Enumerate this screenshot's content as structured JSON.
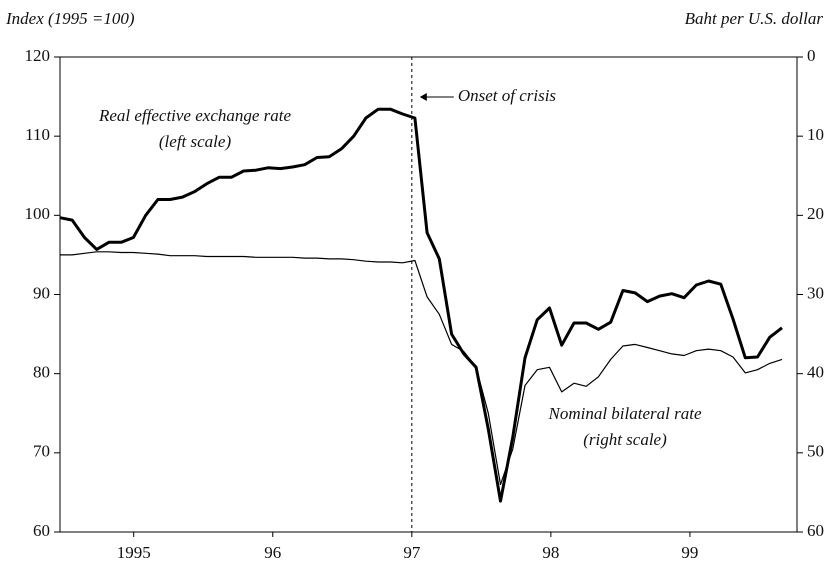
{
  "chart_data": {
    "type": "line",
    "ylabel": "Index (1995 =100)",
    "y2label": "Baht per U.S. dollar",
    "x": [
      1994.97,
      1995.058,
      1995.146,
      1995.234,
      1995.322,
      1995.41,
      1995.498,
      1995.586,
      1995.674,
      1995.762,
      1995.85,
      1995.938,
      1996.026,
      1996.114,
      1996.202,
      1996.29,
      1996.378,
      1996.466,
      1996.554,
      1996.642,
      1996.73,
      1996.818,
      1996.906,
      1996.994,
      1997.082,
      1997.17,
      1997.258,
      1997.346,
      1997.434,
      1997.522,
      1997.61,
      1997.698,
      1997.786,
      1997.874,
      1997.962,
      1998.05,
      1998.138,
      1998.226,
      1998.314,
      1998.402,
      1998.49,
      1998.578,
      1998.666,
      1998.754,
      1998.842,
      1998.93,
      1999.018,
      1999.106,
      1999.194,
      1999.282,
      1999.37,
      1999.458,
      1999.546,
      1999.634,
      1999.722,
      1999.81,
      1999.898,
      1999.986,
      2000.074,
      2000.162
    ],
    "series": [
      {
        "name": "Real effective exchange rate",
        "legend_note": "(left scale)",
        "color": "#000000",
        "width": 3,
        "axis": "y",
        "values": [
          99.7,
          99.4,
          97.2,
          95.7,
          96.6,
          96.6,
          97.2,
          100,
          102,
          102,
          102.3,
          103,
          104,
          104.8,
          104.8,
          105.6,
          105.7,
          106,
          105.9,
          106.1,
          106.4,
          107.3,
          107.4,
          108.4,
          110,
          112.3,
          113.4,
          113.4,
          112.8,
          112.3,
          97.8,
          94.5,
          85,
          82.5,
          80.8,
          73,
          63.9,
          72,
          82,
          86.8,
          88.3,
          83.6,
          86.4,
          86.4,
          85.6,
          86.5,
          90.5,
          90.2,
          89.1,
          89.8,
          90.1,
          89.6,
          91.2,
          91.7,
          91.3,
          86.9,
          82,
          82.1,
          84.6,
          85.8
        ]
      },
      {
        "name": "Nominal bilateral rate",
        "legend_note": "(right scale)",
        "color": "#000000",
        "width": 1.2,
        "axis": "y2",
        "values": [
          25.0,
          25.0,
          24.8,
          24.6,
          24.6,
          24.7,
          24.7,
          24.8,
          24.9,
          25.1,
          25.1,
          25.1,
          25.2,
          25.2,
          25.2,
          25.2,
          25.3,
          25.3,
          25.3,
          25.3,
          25.4,
          25.4,
          25.5,
          25.5,
          25.6,
          25.8,
          25.9,
          25.9,
          26.0,
          25.7,
          30.3,
          32.5,
          36.3,
          37.2,
          39.2,
          45,
          54,
          49.5,
          41.5,
          39.5,
          39.2,
          42.3,
          41.2,
          41.6,
          40.4,
          38.2,
          36.5,
          36.3,
          36.7,
          37.1,
          37.5,
          37.7,
          37.1,
          36.9,
          37.1,
          37.9,
          39.9,
          39.5,
          38.7,
          38.2
        ]
      }
    ],
    "annotation": {
      "text": "Onset of crisis",
      "x": 1997.5
    },
    "xlim": [
      1994.97,
      2000.27
    ],
    "xticks": [
      {
        "value": 1995.5,
        "label": "1995"
      },
      {
        "value": 1996.5,
        "label": "96"
      },
      {
        "value": 1997.5,
        "label": "97"
      },
      {
        "value": 1998.5,
        "label": "98"
      },
      {
        "value": 1999.5,
        "label": "99"
      }
    ],
    "ylim": [
      60,
      120
    ],
    "yticks": [
      60,
      70,
      80,
      90,
      100,
      110,
      120
    ],
    "y2lim": [
      60,
      0
    ],
    "y2ticks": [
      0,
      10,
      20,
      30,
      40,
      50,
      60
    ],
    "grid": false
  }
}
